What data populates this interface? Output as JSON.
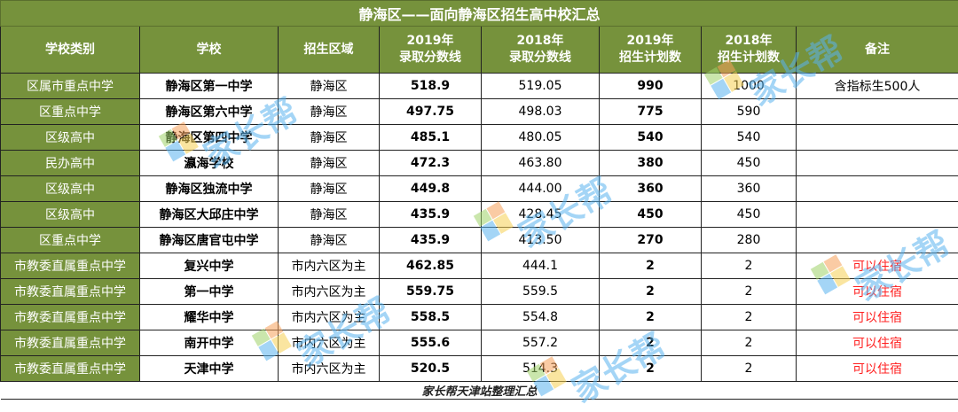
{
  "title": "静海区——面向静海区招生高中校汇总",
  "headers": [
    {
      "line1": "学校类别",
      "line2": ""
    },
    {
      "line1": "学校",
      "line2": ""
    },
    {
      "line1": "招生区域",
      "line2": ""
    },
    {
      "line1": "2019年",
      "line2": "录取分数线"
    },
    {
      "line1": "2018年",
      "line2": "录取分数线"
    },
    {
      "line1": "2019年",
      "line2": "招生计划数"
    },
    {
      "line1": "2018年",
      "line2": "招生计划数"
    },
    {
      "line1": "备注",
      "line2": ""
    }
  ],
  "rows": [
    {
      "category": "区属市重点中学",
      "school": "静海区第一中学",
      "area": "静海区",
      "score2019": "518.9",
      "score2018": "519.05",
      "plan2019": "990",
      "plan2018": "1000",
      "note": "含指标生500人"
    },
    {
      "category": "区重点中学",
      "school": "静海区第六中学",
      "area": "静海区",
      "score2019": "497.75",
      "score2018": "498.03",
      "plan2019": "775",
      "plan2018": "590",
      "note": ""
    },
    {
      "category": "区级高中",
      "school": "静海区第四中学",
      "area": "静海区",
      "score2019": "485.1",
      "score2018": "480.05",
      "plan2019": "540",
      "plan2018": "540",
      "note": ""
    },
    {
      "category": "民办高中",
      "school": "瀛海学校",
      "area": "静海区",
      "score2019": "472.3",
      "score2018": "463.80",
      "plan2019": "380",
      "plan2018": "450",
      "note": ""
    },
    {
      "category": "区级高中",
      "school": "静海区独流中学",
      "area": "静海区",
      "score2019": "449.8",
      "score2018": "444.00",
      "plan2019": "360",
      "plan2018": "360",
      "note": ""
    },
    {
      "category": "区级高中",
      "school": "静海区大邱庄中学",
      "area": "静海区",
      "score2019": "435.9",
      "score2018": "428.45",
      "plan2019": "450",
      "plan2018": "450",
      "note": ""
    },
    {
      "category": "区重点中学",
      "school": "静海区唐官屯中学",
      "area": "静海区",
      "score2019": "435.9",
      "score2018": "413.50",
      "plan2019": "270",
      "plan2018": "280",
      "note": ""
    },
    {
      "category": "市教委直属重点中学",
      "school": "复兴中学",
      "area": "市内六区为主",
      "score2019": "462.85",
      "score2018": "444.1",
      "plan2019": "2",
      "plan2018": "2",
      "note": "可以住宿"
    },
    {
      "category": "市教委直属重点中学",
      "school": "第一中学",
      "area": "市内六区为主",
      "score2019": "559.75",
      "score2018": "559.5",
      "plan2019": "2",
      "plan2018": "2",
      "note": "可以住宿"
    },
    {
      "category": "市教委直属重点中学",
      "school": "耀华中学",
      "area": "市内六区为主",
      "score2019": "558.5",
      "score2018": "554.8",
      "plan2019": "2",
      "plan2018": "2",
      "note": "可以住宿"
    },
    {
      "category": "市教委直属重点中学",
      "school": "南开中学",
      "area": "市内六区为主",
      "score2019": "555.6",
      "score2018": "557.2",
      "plan2019": "2",
      "plan2018": "2",
      "note": "可以住宿"
    },
    {
      "category": "市教委直属重点中学",
      "school": "天津中学",
      "area": "市内六区为主",
      "score2019": "520.5",
      "score2018": "514.3",
      "plan2019": "2",
      "plan2018": "2",
      "note": "可以住宿"
    }
  ],
  "footer": "家长帮天津站整理汇总",
  "watermark": "家长帮",
  "colors": {
    "header_green": "#76923c",
    "note_red": "#ff2020",
    "watermark_blue": "#5ab4ef"
  }
}
